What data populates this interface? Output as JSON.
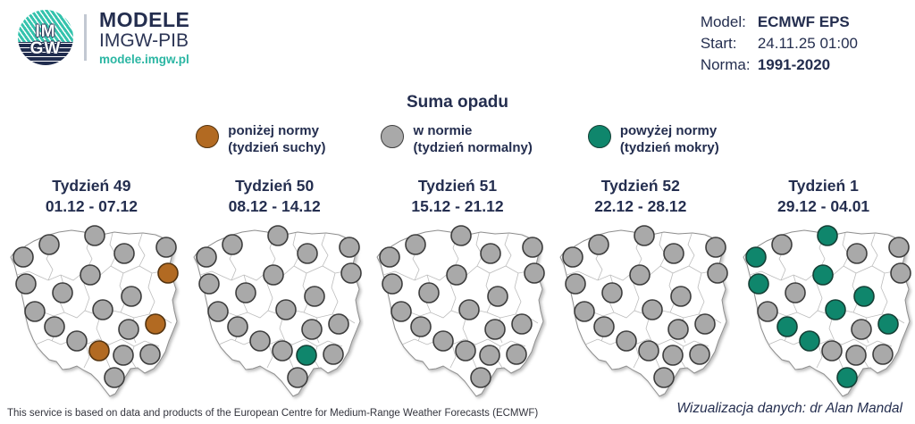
{
  "brand": {
    "logo_top": "IM",
    "logo_bottom": "GW",
    "modele": "MODELE",
    "imgw": "IMGW-PIB",
    "url": "modele.imgw.pl"
  },
  "run_info": {
    "rows": [
      {
        "label": "Model:",
        "value": "ECMWF EPS",
        "bold": true
      },
      {
        "label": "Start:",
        "value": "24.11.25 01:00",
        "bold": false
      },
      {
        "label": "Norma:",
        "value": "1991-2020",
        "bold": true
      }
    ]
  },
  "title": "Suma opadu",
  "legend": [
    {
      "key": "below",
      "color": "#b26a22",
      "border": "#53330f",
      "line1": "poniżej normy",
      "line2": "(tydzień suchy)"
    },
    {
      "key": "normal",
      "color": "#a9a9a9",
      "border": "#3d3d3d",
      "line1": "w normie",
      "line2": "(tydzień normalny)"
    },
    {
      "key": "above",
      "color": "#0f866c",
      "border": "#153f35",
      "line1": "powyżej normy",
      "line2": "(tydzień mokry)"
    }
  ],
  "chart_data": {
    "type": "scatter",
    "subtype": "small-multiples-poland-dot-maps",
    "title": "Suma opadu",
    "legend_entries": [
      "poniżej normy (tydzień suchy)",
      "w normie (tydzień normalny)",
      "powyżej normy (tydzień mokry)"
    ],
    "dot_positions": [
      [
        24,
        38
      ],
      [
        53,
        24
      ],
      [
        104,
        14
      ],
      [
        137,
        34
      ],
      [
        184,
        27
      ],
      [
        99,
        58
      ],
      [
        186,
        56
      ],
      [
        27,
        68
      ],
      [
        68,
        78
      ],
      [
        145,
        82
      ],
      [
        37,
        99
      ],
      [
        113,
        97
      ],
      [
        172,
        113
      ],
      [
        59,
        116
      ],
      [
        84,
        132
      ],
      [
        109,
        143
      ],
      [
        136,
        148
      ],
      [
        166,
        147
      ],
      [
        126,
        173
      ],
      [
        142,
        119
      ]
    ],
    "weeks": [
      {
        "label": "Tydzień 49",
        "dates": "01.12 - 07.12",
        "values": [
          "normal",
          "normal",
          "normal",
          "normal",
          "normal",
          "normal",
          "below",
          "normal",
          "normal",
          "normal",
          "normal",
          "normal",
          "below",
          "normal",
          "normal",
          "below",
          "normal",
          "normal",
          "normal",
          "normal"
        ]
      },
      {
        "label": "Tydzień 50",
        "dates": "08.12 - 14.12",
        "values": [
          "normal",
          "normal",
          "normal",
          "normal",
          "normal",
          "normal",
          "normal",
          "normal",
          "normal",
          "normal",
          "normal",
          "normal",
          "normal",
          "normal",
          "normal",
          "normal",
          "above",
          "normal",
          "normal",
          "normal"
        ]
      },
      {
        "label": "Tydzień 51",
        "dates": "15.12 - 21.12",
        "values": [
          "normal",
          "normal",
          "normal",
          "normal",
          "normal",
          "normal",
          "normal",
          "normal",
          "normal",
          "normal",
          "normal",
          "normal",
          "normal",
          "normal",
          "normal",
          "normal",
          "normal",
          "normal",
          "normal",
          "normal"
        ]
      },
      {
        "label": "Tydzień 52",
        "dates": "22.12 - 28.12",
        "values": [
          "normal",
          "normal",
          "normal",
          "normal",
          "normal",
          "normal",
          "normal",
          "normal",
          "normal",
          "normal",
          "normal",
          "normal",
          "normal",
          "normal",
          "normal",
          "normal",
          "normal",
          "normal",
          "normal",
          "normal"
        ]
      },
      {
        "label": "Tydzień 1",
        "dates": "29.12 - 04.01",
        "values": [
          "above",
          "normal",
          "above",
          "normal",
          "normal",
          "above",
          "normal",
          "above",
          "normal",
          "above",
          "normal",
          "above",
          "above",
          "above",
          "above",
          "normal",
          "normal",
          "normal",
          "above",
          "normal"
        ]
      }
    ]
  },
  "footer": {
    "left": "This service is based on data and products of the European Centre for Medium-Range Weather Forecasts (ECMWF)",
    "right": "Wizualizacja danych: dr Alan Mandal"
  }
}
